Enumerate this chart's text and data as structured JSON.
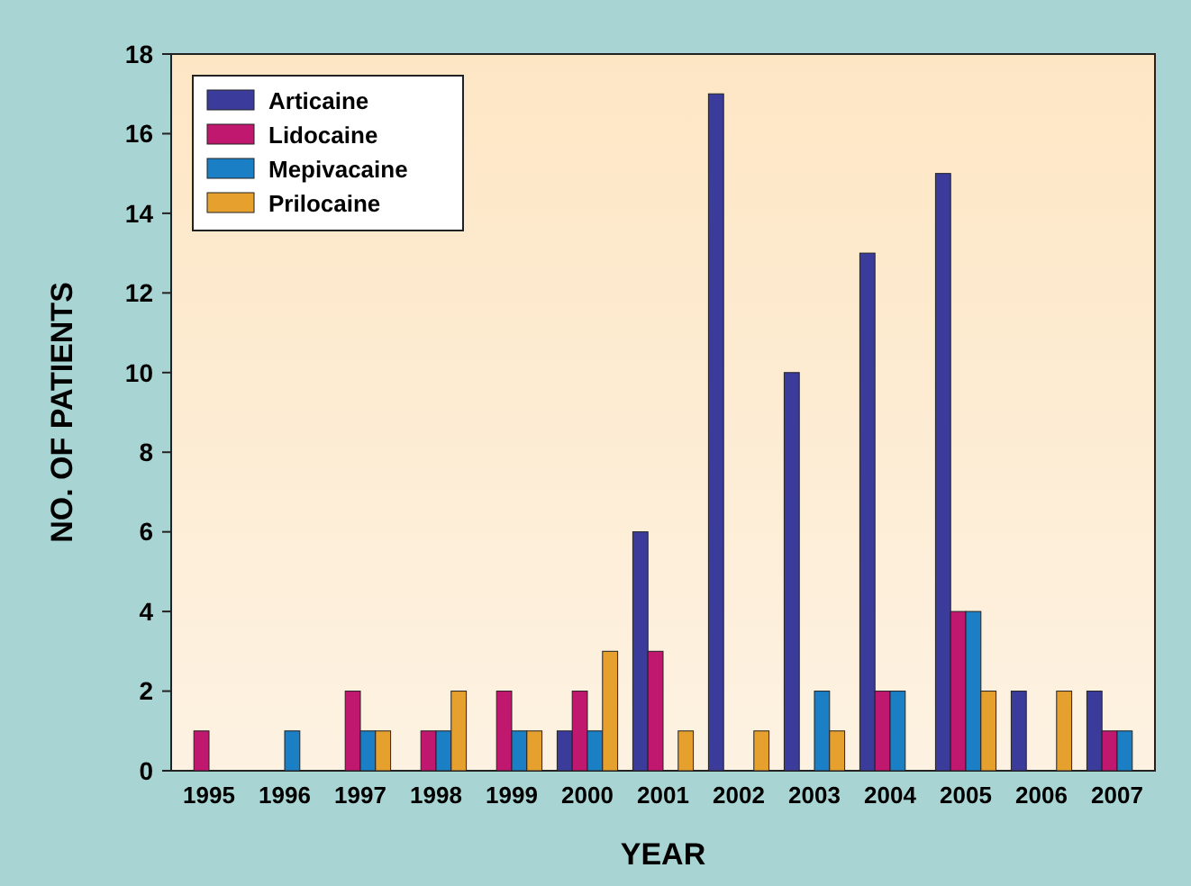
{
  "chart_data": {
    "type": "bar",
    "xlabel": "YEAR",
    "ylabel": "NO. OF PATIENTS",
    "categories": [
      "1995",
      "1996",
      "1997",
      "1998",
      "1999",
      "2000",
      "2001",
      "2002",
      "2003",
      "2004",
      "2005",
      "2006",
      "2007"
    ],
    "series": [
      {
        "name": "Articaine",
        "color": "#3b3b9c",
        "values": [
          0,
          0,
          0,
          0,
          0,
          1,
          6,
          17,
          10,
          13,
          15,
          2,
          2
        ]
      },
      {
        "name": "Lidocaine",
        "color": "#c0186f",
        "values": [
          1,
          0,
          2,
          1,
          2,
          2,
          3,
          0,
          0,
          2,
          4,
          0,
          1
        ]
      },
      {
        "name": "Mepivacaine",
        "color": "#1b7fc6",
        "values": [
          0,
          1,
          1,
          1,
          1,
          1,
          0,
          0,
          2,
          2,
          4,
          0,
          1
        ]
      },
      {
        "name": "Prilocaine",
        "color": "#e5a02e",
        "values": [
          0,
          0,
          1,
          2,
          1,
          3,
          1,
          1,
          1,
          0,
          2,
          2,
          0
        ]
      }
    ],
    "ylim": [
      0,
      18
    ],
    "yticks": [
      0,
      2,
      4,
      6,
      8,
      10,
      12,
      14,
      16,
      18
    ],
    "grid": false,
    "legend": "top left"
  }
}
